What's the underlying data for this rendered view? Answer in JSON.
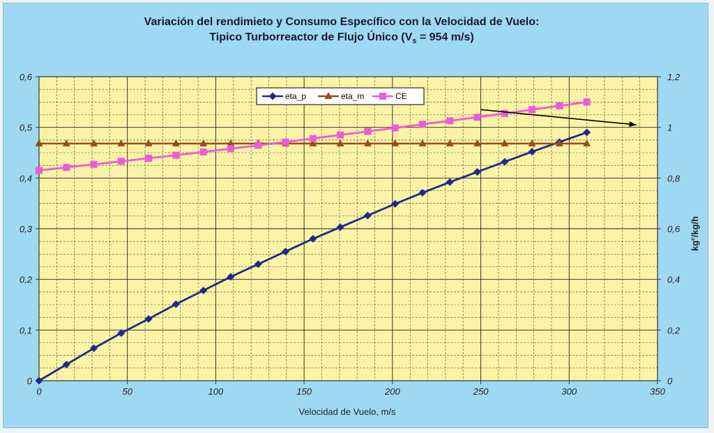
{
  "chart_data": {
    "type": "line",
    "title_line1": "Variación del rendimieto y Consumo Específico con la Velocidad de Vuelo:",
    "title_line2_prefix": "Tipico Turborreactor de Flujo Único (V",
    "title_line2_sub": "s",
    "title_line2_suffix": " = 954 m/s)",
    "xlabel": "Velocidad  de Vuelo, m/s",
    "y2label": "kg",
    "y2label_sup": "c",
    "y2label_suffix": "/kg/h",
    "xlim": [
      0,
      350
    ],
    "ylim": [
      0,
      0.6
    ],
    "y2lim": [
      0,
      1.2
    ],
    "x_ticks": [
      "0",
      "50",
      "100",
      "150",
      "200",
      "250",
      "300",
      "350"
    ],
    "y_ticks": [
      "0",
      "0,1",
      "0,2",
      "0,3",
      "0,4",
      "0,5",
      "0,6"
    ],
    "y2_ticks": [
      "0",
      "0,2",
      "0,4",
      "0,6",
      "0,8",
      "1",
      "1,2"
    ],
    "grid": true,
    "legend_position": "top-center",
    "x": [
      0,
      15.5,
      31,
      46.5,
      62,
      77.5,
      93,
      108.5,
      124,
      139.5,
      155,
      170.5,
      186,
      201.5,
      217,
      232.5,
      248,
      263.5,
      279,
      294.5,
      310
    ],
    "series": [
      {
        "name": "eta_p",
        "axis": "left",
        "color": "#1c2a8c",
        "marker": "diamond",
        "values": [
          0,
          0.032,
          0.064,
          0.094,
          0.122,
          0.151,
          0.178,
          0.205,
          0.23,
          0.255,
          0.28,
          0.303,
          0.326,
          0.349,
          0.371,
          0.392,
          0.412,
          0.432,
          0.452,
          0.471,
          0.49
        ]
      },
      {
        "name": "eta_m",
        "axis": "left",
        "color": "#9a4a1c",
        "marker": "triangle",
        "values": [
          0.468,
          0.468,
          0.468,
          0.468,
          0.468,
          0.468,
          0.468,
          0.468,
          0.468,
          0.468,
          0.468,
          0.468,
          0.468,
          0.468,
          0.468,
          0.468,
          0.468,
          0.468,
          0.468,
          0.468,
          0.468
        ]
      },
      {
        "name": "CE",
        "axis": "right",
        "color": "#ee5ad8",
        "marker": "square",
        "values": [
          0.83,
          0.842,
          0.854,
          0.866,
          0.878,
          0.89,
          0.903,
          0.916,
          0.929,
          0.942,
          0.956,
          0.97,
          0.984,
          0.998,
          1.012,
          1.026,
          1.04,
          1.055,
          1.07,
          1.085,
          1.1
        ]
      }
    ],
    "annotation_arrow": {
      "x1": 250,
      "y1": 1.07,
      "x2": 338,
      "y2": 1.01,
      "axis": "right",
      "color": "#000000"
    },
    "plot_bg": "#fbf3a6"
  }
}
